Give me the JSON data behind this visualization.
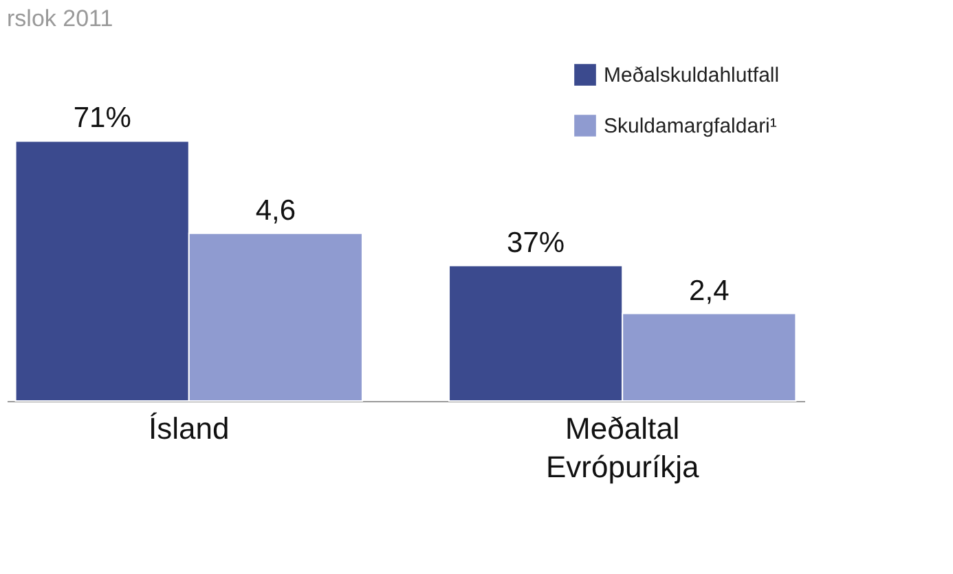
{
  "chart_data": {
    "type": "bar",
    "title": "rslok 2011",
    "categories": [
      "Ísland",
      "Meðaltal Evrópuríkja"
    ],
    "series": [
      {
        "name": "Meðalskuldahlutfall",
        "color": "#3b4a8e",
        "values": [
          71,
          37
        ],
        "value_labels": [
          "71%",
          "37%"
        ]
      },
      {
        "name": "Skuldamargfaldari¹",
        "color": "#8f9bd0",
        "values": [
          4.6,
          2.4
        ],
        "value_labels": [
          "4,6",
          "2,4"
        ],
        "axis": "y2"
      }
    ],
    "legend": "top right",
    "tick_labels": "x"
  }
}
